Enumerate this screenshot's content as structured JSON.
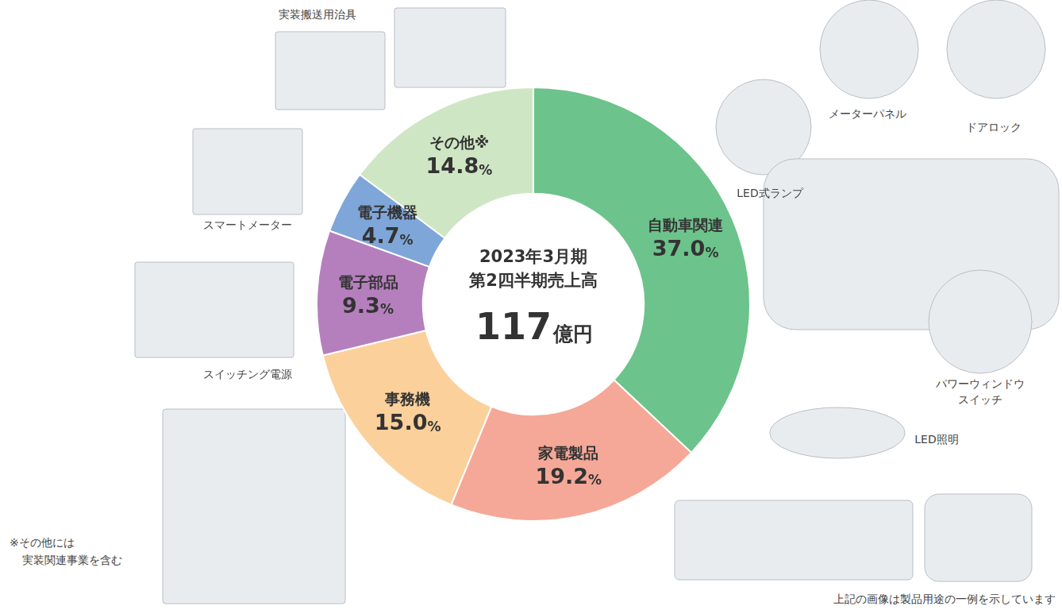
{
  "chart_data": {
    "type": "doughnut",
    "categories": [
      "自動車関連",
      "家電製品",
      "事務機",
      "電子部品",
      "電子機器",
      "その他※"
    ],
    "values": [
      37.0,
      19.2,
      15.0,
      9.3,
      4.7,
      14.8
    ],
    "value_labels": [
      "37.0%",
      "19.2%",
      "15.0%",
      "9.3%",
      "4.7%",
      "14.8%"
    ],
    "colors": [
      "#6cc38b",
      "#f5a898",
      "#fbd09b",
      "#b57fbd",
      "#7fa6d8",
      "#cfe6c4"
    ],
    "data_labels": true,
    "center_text": [
      "2023年3月期",
      "第2四半期売上高"
    ],
    "total": 117,
    "total_unit": "億円"
  },
  "images": [
    {
      "caption": [
        "実装搬送用治具"
      ]
    },
    {
      "caption": [
        "スマートメーター"
      ]
    },
    {
      "caption": [
        "スイッチング電源"
      ]
    },
    {
      "caption": [
        "LED式ランプ"
      ]
    },
    {
      "caption": [
        "メーターパネル"
      ]
    },
    {
      "caption": [
        "ドアロック"
      ]
    },
    {
      "caption": [
        "パワーウィンドウ",
        "スイッチ"
      ]
    },
    {
      "caption": [
        "LED照明"
      ]
    }
  ],
  "notes": [
    [
      "※その他には",
      "実装関連事業を含む"
    ],
    [
      "上記の画像は製品用途の一例を示しています"
    ]
  ]
}
